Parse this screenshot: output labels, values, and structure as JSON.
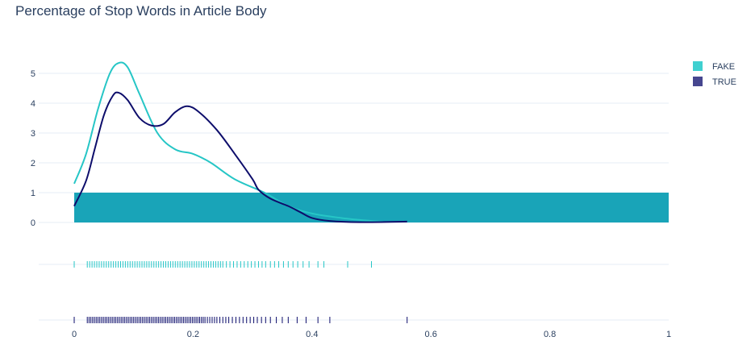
{
  "chart_data": {
    "type": "area",
    "title": "Percentage of Stop Words in Article Body",
    "xlabel": "",
    "ylabel": "",
    "xlim": [
      0,
      1
    ],
    "ylim": [
      0,
      5.3
    ],
    "x_ticks": [
      "0",
      "0.2",
      "0.4",
      "0.6",
      "0.8",
      "1"
    ],
    "x_tick_values": [
      0,
      0.2,
      0.4,
      0.6,
      0.8,
      1
    ],
    "y_ticks": [
      "0",
      "1",
      "2",
      "3",
      "4",
      "5"
    ],
    "y_tick_values": [
      0,
      1,
      2,
      3,
      4,
      5
    ],
    "grid": true,
    "legend_position": "top-right",
    "series": [
      {
        "name": "FAKE",
        "color": "#26c6c6",
        "legend_color": "#3fd0d0",
        "density": [
          [
            0.0,
            1.3
          ],
          [
            0.02,
            2.3
          ],
          [
            0.04,
            3.8
          ],
          [
            0.06,
            5.0
          ],
          [
            0.075,
            5.35
          ],
          [
            0.09,
            5.2
          ],
          [
            0.11,
            4.3
          ],
          [
            0.14,
            3.0
          ],
          [
            0.17,
            2.45
          ],
          [
            0.2,
            2.3
          ],
          [
            0.23,
            2.0
          ],
          [
            0.27,
            1.45
          ],
          [
            0.32,
            1.0
          ],
          [
            0.36,
            0.55
          ],
          [
            0.4,
            0.3
          ],
          [
            0.45,
            0.15
          ],
          [
            0.5,
            0.05
          ],
          [
            0.52,
            0.02
          ]
        ],
        "rug": [
          0,
          0.022,
          0.026,
          0.03,
          0.034,
          0.038,
          0.042,
          0.046,
          0.05,
          0.054,
          0.058,
          0.062,
          0.066,
          0.07,
          0.074,
          0.078,
          0.082,
          0.086,
          0.09,
          0.094,
          0.098,
          0.102,
          0.106,
          0.11,
          0.114,
          0.118,
          0.122,
          0.126,
          0.13,
          0.134,
          0.138,
          0.142,
          0.146,
          0.15,
          0.154,
          0.158,
          0.162,
          0.166,
          0.17,
          0.174,
          0.178,
          0.182,
          0.186,
          0.19,
          0.194,
          0.198,
          0.202,
          0.206,
          0.21,
          0.214,
          0.218,
          0.222,
          0.226,
          0.23,
          0.234,
          0.238,
          0.242,
          0.246,
          0.25,
          0.256,
          0.262,
          0.268,
          0.274,
          0.28,
          0.286,
          0.292,
          0.298,
          0.304,
          0.31,
          0.316,
          0.322,
          0.33,
          0.337,
          0.344,
          0.352,
          0.36,
          0.368,
          0.376,
          0.385,
          0.395,
          0.41,
          0.42,
          0.46,
          0.5
        ]
      },
      {
        "name": "TRUE",
        "color": "#0d0d6b",
        "legend_color": "#46468f",
        "density": [
          [
            0.0,
            0.55
          ],
          [
            0.02,
            1.4
          ],
          [
            0.035,
            2.5
          ],
          [
            0.05,
            3.6
          ],
          [
            0.065,
            4.25
          ],
          [
            0.075,
            4.35
          ],
          [
            0.09,
            4.1
          ],
          [
            0.11,
            3.5
          ],
          [
            0.13,
            3.25
          ],
          [
            0.15,
            3.3
          ],
          [
            0.17,
            3.7
          ],
          [
            0.19,
            3.9
          ],
          [
            0.21,
            3.7
          ],
          [
            0.24,
            3.1
          ],
          [
            0.27,
            2.3
          ],
          [
            0.3,
            1.45
          ],
          [
            0.31,
            1.1
          ],
          [
            0.33,
            0.8
          ],
          [
            0.36,
            0.55
          ],
          [
            0.38,
            0.35
          ],
          [
            0.4,
            0.15
          ],
          [
            0.43,
            0.05
          ],
          [
            0.48,
            0.01
          ],
          [
            0.56,
            0.03
          ]
        ],
        "rug": [
          0,
          0.022,
          0.025,
          0.028,
          0.031,
          0.034,
          0.037,
          0.04,
          0.043,
          0.046,
          0.049,
          0.052,
          0.055,
          0.058,
          0.061,
          0.064,
          0.067,
          0.07,
          0.073,
          0.076,
          0.079,
          0.082,
          0.085,
          0.088,
          0.091,
          0.094,
          0.097,
          0.1,
          0.103,
          0.106,
          0.109,
          0.112,
          0.115,
          0.118,
          0.121,
          0.124,
          0.127,
          0.13,
          0.133,
          0.136,
          0.139,
          0.142,
          0.145,
          0.148,
          0.151,
          0.154,
          0.157,
          0.16,
          0.163,
          0.166,
          0.169,
          0.172,
          0.175,
          0.178,
          0.181,
          0.184,
          0.187,
          0.19,
          0.193,
          0.196,
          0.199,
          0.202,
          0.205,
          0.208,
          0.211,
          0.214,
          0.217,
          0.22,
          0.224,
          0.228,
          0.232,
          0.236,
          0.24,
          0.245,
          0.25,
          0.255,
          0.26,
          0.266,
          0.272,
          0.278,
          0.284,
          0.29,
          0.296,
          0.302,
          0.308,
          0.315,
          0.322,
          0.33,
          0.34,
          0.35,
          0.36,
          0.375,
          0.39,
          0.41,
          0.43,
          0.56
        ]
      }
    ],
    "bar": {
      "color": "#19a4b8",
      "x_range": [
        0,
        1
      ],
      "y_range": [
        0,
        1
      ]
    }
  }
}
